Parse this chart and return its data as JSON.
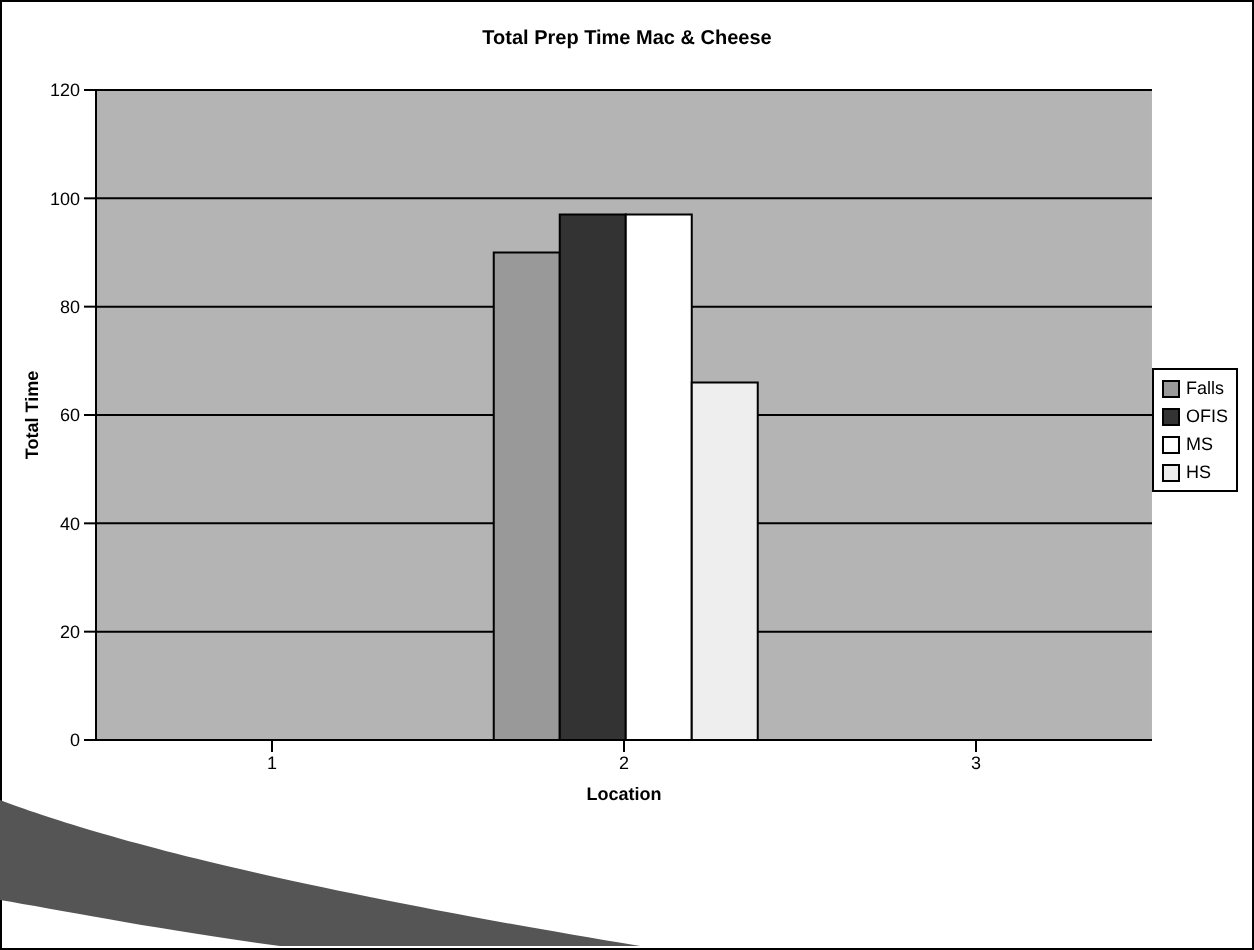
{
  "chart_data": {
    "type": "bar",
    "title": "Total Prep Time Mac & Cheese",
    "xlabel": "Location",
    "ylabel": "Total Time",
    "categories": [
      "1",
      "2",
      "3"
    ],
    "series": [
      {
        "name": "Falls",
        "color": "#999999",
        "values": [
          null,
          90,
          null
        ]
      },
      {
        "name": "OFIS",
        "color": "#333333",
        "values": [
          null,
          97,
          null
        ]
      },
      {
        "name": "MS",
        "color": "#ffffff",
        "values": [
          null,
          97,
          null
        ]
      },
      {
        "name": "HS",
        "color": "#eeeeee",
        "values": [
          null,
          66,
          null
        ]
      }
    ],
    "ylim": [
      0,
      120
    ],
    "yticks": [
      0,
      20,
      40,
      60,
      80,
      100,
      120
    ],
    "grid": "y",
    "legend": "right"
  }
}
